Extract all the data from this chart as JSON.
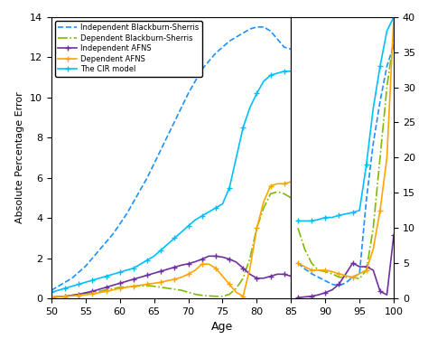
{
  "xlabel": "Age",
  "ylabel": "Absolute Percentage Error",
  "left_panel": {
    "xlim": [
      50,
      85
    ],
    "ylim": [
      0,
      14
    ],
    "yticks": [
      0,
      2,
      4,
      6,
      8,
      10,
      12,
      14
    ],
    "xticks": [
      50,
      55,
      60,
      65,
      70,
      75,
      80,
      85
    ]
  },
  "right_panel": {
    "xlim": [
      86,
      100
    ],
    "ylim": [
      0,
      40
    ],
    "yticks": [
      0,
      5,
      10,
      15,
      20,
      25,
      30,
      35,
      40
    ],
    "xticks": [
      90,
      95,
      100
    ]
  },
  "series": {
    "ind_bs": {
      "label": "Independent Blackburn-Sherris",
      "color": "#1E90FF",
      "linestyle": "--",
      "linewidth": 1.2,
      "x_left": [
        50,
        51,
        52,
        53,
        54,
        55,
        56,
        57,
        58,
        59,
        60,
        61,
        62,
        63,
        64,
        65,
        66,
        67,
        68,
        69,
        70,
        71,
        72,
        73,
        74,
        75,
        76,
        77,
        78,
        79,
        80,
        81,
        82,
        83,
        84,
        85
      ],
      "y_left": [
        0.4,
        0.6,
        0.8,
        1.0,
        1.3,
        1.6,
        2.0,
        2.4,
        2.8,
        3.2,
        3.7,
        4.2,
        4.8,
        5.4,
        6.0,
        6.7,
        7.4,
        8.1,
        8.8,
        9.5,
        10.2,
        10.8,
        11.4,
        11.8,
        12.2,
        12.5,
        12.8,
        13.0,
        13.2,
        13.4,
        13.5,
        13.5,
        13.3,
        12.9,
        12.5,
        12.4
      ],
      "x_right": [
        86,
        87,
        88,
        89,
        90,
        91,
        92,
        93,
        94,
        95,
        96,
        97,
        98,
        99,
        100
      ],
      "y_right": [
        5.0,
        4.2,
        3.5,
        3.0,
        2.5,
        2.0,
        1.8,
        2.2,
        3.0,
        3.5,
        14.0,
        22.0,
        28.0,
        33.0,
        36.0
      ]
    },
    "dep_bs": {
      "label": "Dependent Blackburn-Sherris",
      "color": "#7FBA00",
      "linestyle": "-.",
      "linewidth": 1.2,
      "x_left": [
        50,
        51,
        52,
        53,
        54,
        55,
        56,
        57,
        58,
        59,
        60,
        61,
        62,
        63,
        64,
        65,
        66,
        67,
        68,
        69,
        70,
        71,
        72,
        73,
        74,
        75,
        76,
        77,
        78,
        79,
        80,
        81,
        82,
        83,
        84,
        85
      ],
      "y_left": [
        0.05,
        0.08,
        0.1,
        0.15,
        0.2,
        0.25,
        0.3,
        0.35,
        0.42,
        0.48,
        0.55,
        0.57,
        0.6,
        0.62,
        0.63,
        0.6,
        0.55,
        0.5,
        0.45,
        0.4,
        0.3,
        0.2,
        0.15,
        0.12,
        0.1,
        0.1,
        0.2,
        0.5,
        1.0,
        2.0,
        3.5,
        4.5,
        5.2,
        5.3,
        5.2,
        5.0
      ],
      "x_right": [
        86,
        87,
        88,
        89,
        90,
        91,
        92,
        93,
        94,
        95,
        96,
        97,
        98,
        99,
        100
      ],
      "y_right": [
        10.0,
        7.0,
        5.0,
        4.0,
        3.8,
        3.5,
        3.0,
        3.0,
        3.0,
        2.8,
        4.0,
        10.0,
        20.0,
        30.0,
        37.0
      ]
    },
    "ind_afns": {
      "label": "Independent AFNS",
      "color": "#7030A0",
      "linestyle": "-",
      "linewidth": 1.2,
      "marker": "+",
      "markersize": 4,
      "markevery": 2,
      "x_left": [
        50,
        51,
        52,
        53,
        54,
        55,
        56,
        57,
        58,
        59,
        60,
        61,
        62,
        63,
        64,
        65,
        66,
        67,
        68,
        69,
        70,
        71,
        72,
        73,
        74,
        75,
        76,
        77,
        78,
        79,
        80,
        81,
        82,
        83,
        84,
        85
      ],
      "y_left": [
        0.05,
        0.08,
        0.1,
        0.15,
        0.2,
        0.28,
        0.35,
        0.45,
        0.55,
        0.65,
        0.75,
        0.85,
        0.95,
        1.05,
        1.15,
        1.25,
        1.35,
        1.45,
        1.55,
        1.65,
        1.72,
        1.82,
        1.95,
        2.1,
        2.1,
        2.05,
        1.95,
        1.8,
        1.5,
        1.2,
        1.0,
        1.0,
        1.1,
        1.2,
        1.2,
        1.1
      ],
      "x_right": [
        86,
        87,
        88,
        89,
        90,
        91,
        92,
        93,
        94,
        95,
        96,
        97,
        98,
        99,
        100
      ],
      "y_right": [
        0.1,
        0.2,
        0.3,
        0.5,
        0.8,
        1.2,
        2.0,
        3.5,
        5.0,
        4.5,
        4.5,
        4.0,
        1.0,
        0.5,
        9.0
      ]
    },
    "dep_afns": {
      "label": "Dependent AFNS",
      "color": "#FFA500",
      "linestyle": "-",
      "linewidth": 1.2,
      "marker": "+",
      "markersize": 4,
      "markevery": 2,
      "x_left": [
        50,
        51,
        52,
        53,
        54,
        55,
        56,
        57,
        58,
        59,
        60,
        61,
        62,
        63,
        64,
        65,
        66,
        67,
        68,
        69,
        70,
        71,
        72,
        73,
        74,
        75,
        76,
        77,
        78,
        79,
        80,
        81,
        82,
        83,
        84,
        85
      ],
      "y_left": [
        0.05,
        0.08,
        0.1,
        0.12,
        0.15,
        0.18,
        0.22,
        0.28,
        0.35,
        0.42,
        0.5,
        0.55,
        0.6,
        0.65,
        0.7,
        0.75,
        0.8,
        0.88,
        0.95,
        1.05,
        1.2,
        1.4,
        1.7,
        1.7,
        1.5,
        1.1,
        0.7,
        0.3,
        0.1,
        1.5,
        3.5,
        4.8,
        5.6,
        5.7,
        5.7,
        5.8
      ],
      "x_right": [
        86,
        87,
        88,
        89,
        90,
        91,
        92,
        93,
        94,
        95,
        96,
        97,
        98,
        99,
        100
      ],
      "y_right": [
        5.0,
        4.5,
        4.0,
        4.0,
        4.0,
        3.8,
        3.5,
        3.2,
        3.0,
        3.5,
        4.0,
        7.0,
        12.5,
        20.0,
        40.0
      ]
    },
    "cir": {
      "label": "The CIR model",
      "color": "#00BFFF",
      "linestyle": "-",
      "linewidth": 1.2,
      "marker": "+",
      "markersize": 4,
      "markevery": 2,
      "x_left": [
        50,
        51,
        52,
        53,
        54,
        55,
        56,
        57,
        58,
        59,
        60,
        61,
        62,
        63,
        64,
        65,
        66,
        67,
        68,
        69,
        70,
        71,
        72,
        73,
        74,
        75,
        76,
        77,
        78,
        79,
        80,
        81,
        82,
        83,
        84,
        85
      ],
      "y_left": [
        0.3,
        0.4,
        0.5,
        0.6,
        0.7,
        0.8,
        0.9,
        1.0,
        1.1,
        1.2,
        1.3,
        1.4,
        1.5,
        1.7,
        1.9,
        2.1,
        2.4,
        2.7,
        3.0,
        3.3,
        3.6,
        3.9,
        4.1,
        4.3,
        4.5,
        4.7,
        5.5,
        7.0,
        8.5,
        9.5,
        10.2,
        10.8,
        11.1,
        11.2,
        11.3,
        11.3
      ],
      "x_right": [
        86,
        87,
        88,
        89,
        90,
        91,
        92,
        93,
        94,
        95,
        96,
        97,
        98,
        99,
        100
      ],
      "y_right": [
        11.0,
        11.0,
        11.0,
        11.2,
        11.5,
        11.5,
        11.8,
        12.0,
        12.2,
        12.5,
        19.0,
        27.0,
        33.0,
        38.0,
        40.0
      ]
    }
  }
}
